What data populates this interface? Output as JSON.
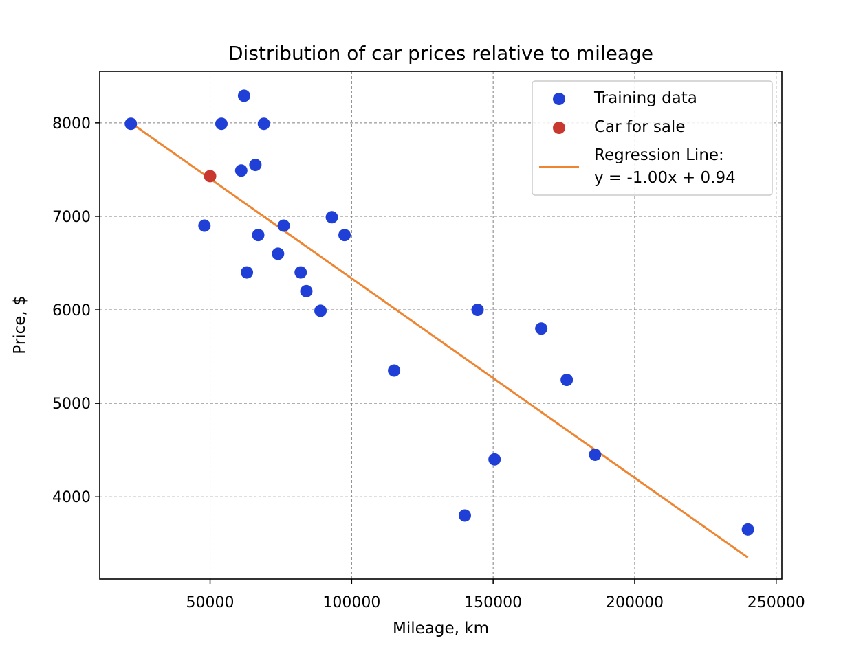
{
  "chart_data": {
    "type": "scatter",
    "title": "Distribution of car prices relative to mileage",
    "xlabel": "Mileage, km",
    "ylabel": "Price, $",
    "xlim": [
      11000,
      252000
    ],
    "ylim": [
      3120,
      8550
    ],
    "x_ticks": [
      50000,
      100000,
      150000,
      200000,
      250000
    ],
    "y_ticks": [
      4000,
      5000,
      6000,
      7000,
      8000
    ],
    "x_tick_labels": [
      "50000",
      "100000",
      "150000",
      "200000",
      "250000"
    ],
    "y_tick_labels": [
      "4000",
      "5000",
      "6000",
      "7000",
      "8000"
    ],
    "grid": true,
    "legend_position": "top-right",
    "series": [
      {
        "name": "Training data",
        "kind": "scatter",
        "color": "#1f3fd6",
        "points": [
          {
            "x": 22000,
            "y": 7990
          },
          {
            "x": 48000,
            "y": 6900
          },
          {
            "x": 54000,
            "y": 7990
          },
          {
            "x": 61000,
            "y": 7490
          },
          {
            "x": 62000,
            "y": 8290
          },
          {
            "x": 63000,
            "y": 6400
          },
          {
            "x": 66000,
            "y": 7550
          },
          {
            "x": 67000,
            "y": 6800
          },
          {
            "x": 69000,
            "y": 7990
          },
          {
            "x": 74000,
            "y": 6600
          },
          {
            "x": 76000,
            "y": 6900
          },
          {
            "x": 82000,
            "y": 6400
          },
          {
            "x": 84000,
            "y": 6200
          },
          {
            "x": 89000,
            "y": 5990
          },
          {
            "x": 93000,
            "y": 6990
          },
          {
            "x": 97500,
            "y": 6800
          },
          {
            "x": 115000,
            "y": 5350
          },
          {
            "x": 140000,
            "y": 3800
          },
          {
            "x": 144500,
            "y": 6000
          },
          {
            "x": 150500,
            "y": 4400
          },
          {
            "x": 167000,
            "y": 5800
          },
          {
            "x": 176000,
            "y": 5250
          },
          {
            "x": 186000,
            "y": 4450
          },
          {
            "x": 240000,
            "y": 3650
          }
        ]
      },
      {
        "name": "Car for sale",
        "kind": "scatter",
        "color": "#c8382f",
        "points": [
          {
            "x": 50000,
            "y": 7430
          }
        ]
      },
      {
        "name": "Regression Line:\ny = -1.00x + 0.94",
        "legend_lines": [
          "Regression Line:",
          "y = -1.00x + 0.94"
        ],
        "kind": "line",
        "color": "#ed8532",
        "points": [
          {
            "x": 22000,
            "y": 8000
          },
          {
            "x": 240000,
            "y": 3350
          }
        ]
      }
    ]
  }
}
